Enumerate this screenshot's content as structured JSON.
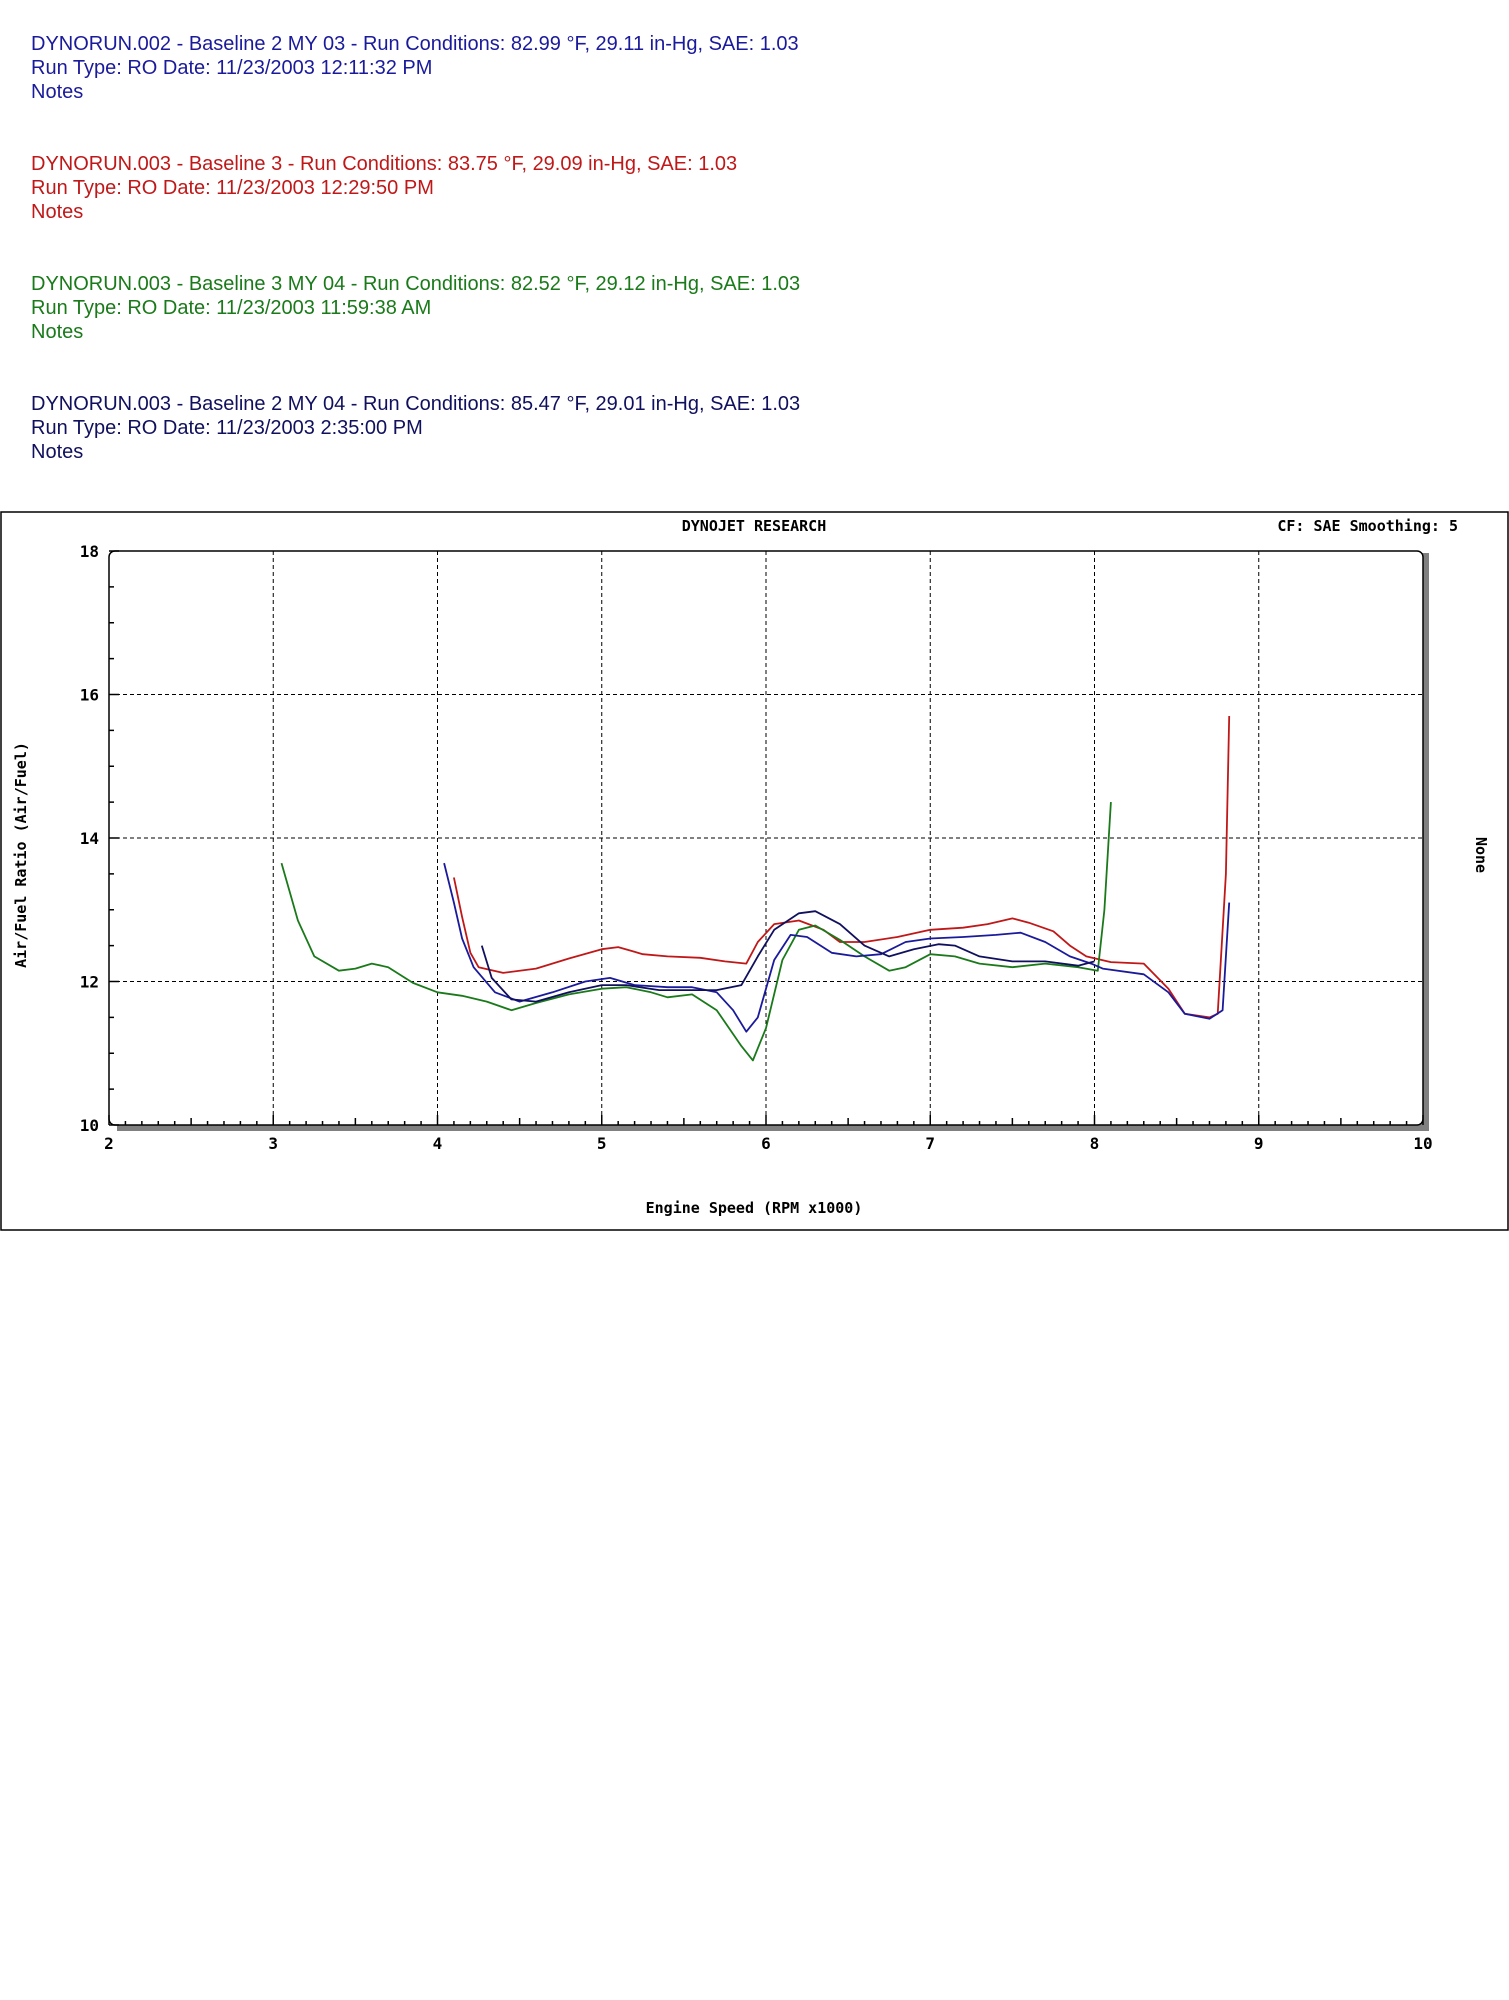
{
  "runs": [
    {
      "line1": "DYNORUN.002 - Baseline 2 MY 03  -  Run Conditions: 82.99 °F, 29.11 in-Hg, SAE: 1.03",
      "line2": "Run Type: RO  Date: 11/23/2003 12:11:32 PM",
      "line3": "Notes",
      "color": "#1a1a9c"
    },
    {
      "line1": "DYNORUN.003 - Baseline 3  -  Run Conditions: 83.75 °F, 29.09 in-Hg, SAE: 1.03",
      "line2": "Run Type: RO  Date: 11/23/2003 12:29:50 PM",
      "line3": "Notes",
      "color": "#c01818"
    },
    {
      "line1": "DYNORUN.003 - Baseline 3 MY 04  -  Run Conditions: 82.52 °F, 29.12 in-Hg, SAE: 1.03",
      "line2": "Run Type: RO  Date: 11/23/2003 11:59:38 AM",
      "line3": "Notes",
      "color": "#1a7a1a"
    },
    {
      "line1": "DYNORUN.003 - Baseline 2 MY 04  -  Run Conditions: 85.47 °F, 29.01 in-Hg, SAE: 1.03",
      "line2": "Run Type: RO  Date: 11/23/2003 2:35:00 PM",
      "line3": "Notes",
      "color": "#10105e"
    }
  ],
  "chart_data": {
    "type": "line",
    "title": "DYNOJET RESEARCH",
    "corner_label": "CF: SAE  Smoothing: 5",
    "right_axis_label": "None",
    "xlabel": "Engine Speed (RPM x1000)",
    "ylabel": "Air/Fuel Ratio (Air/Fuel)",
    "xlim": [
      2,
      10
    ],
    "ylim": [
      10,
      18
    ],
    "xticks": [
      "2",
      "3",
      "4",
      "5",
      "6",
      "7",
      "8",
      "9",
      "10"
    ],
    "yticks": [
      "10",
      "12",
      "14",
      "16",
      "18"
    ],
    "grid": true,
    "series": [
      {
        "color": "#c01818",
        "points": [
          [
            4.1,
            13.45
          ],
          [
            4.15,
            12.9
          ],
          [
            4.2,
            12.4
          ],
          [
            4.25,
            12.2
          ],
          [
            4.4,
            12.12
          ],
          [
            4.6,
            12.18
          ],
          [
            4.8,
            12.32
          ],
          [
            5.0,
            12.45
          ],
          [
            5.1,
            12.48
          ],
          [
            5.25,
            12.38
          ],
          [
            5.4,
            12.35
          ],
          [
            5.6,
            12.33
          ],
          [
            5.75,
            12.28
          ],
          [
            5.88,
            12.25
          ],
          [
            5.95,
            12.55
          ],
          [
            6.05,
            12.8
          ],
          [
            6.2,
            12.85
          ],
          [
            6.35,
            12.72
          ],
          [
            6.45,
            12.55
          ],
          [
            6.6,
            12.55
          ],
          [
            6.8,
            12.62
          ],
          [
            7.0,
            12.72
          ],
          [
            7.2,
            12.75
          ],
          [
            7.35,
            12.8
          ],
          [
            7.5,
            12.88
          ],
          [
            7.6,
            12.82
          ],
          [
            7.75,
            12.7
          ],
          [
            7.85,
            12.5
          ],
          [
            7.95,
            12.35
          ],
          [
            8.1,
            12.27
          ],
          [
            8.3,
            12.25
          ],
          [
            8.45,
            11.9
          ],
          [
            8.55,
            11.55
          ],
          [
            8.7,
            11.5
          ],
          [
            8.75,
            11.55
          ],
          [
            8.8,
            13.5
          ],
          [
            8.82,
            15.7
          ]
        ]
      },
      {
        "color": "#1a7a1a",
        "points": [
          [
            3.05,
            13.65
          ],
          [
            3.15,
            12.85
          ],
          [
            3.25,
            12.35
          ],
          [
            3.4,
            12.15
          ],
          [
            3.5,
            12.18
          ],
          [
            3.6,
            12.25
          ],
          [
            3.7,
            12.2
          ],
          [
            3.85,
            11.98
          ],
          [
            4.0,
            11.85
          ],
          [
            4.15,
            11.8
          ],
          [
            4.3,
            11.72
          ],
          [
            4.45,
            11.6
          ],
          [
            4.6,
            11.7
          ],
          [
            4.8,
            11.82
          ],
          [
            5.0,
            11.9
          ],
          [
            5.15,
            11.92
          ],
          [
            5.3,
            11.85
          ],
          [
            5.4,
            11.78
          ],
          [
            5.55,
            11.82
          ],
          [
            5.7,
            11.6
          ],
          [
            5.85,
            11.1
          ],
          [
            5.92,
            10.9
          ],
          [
            6.0,
            11.35
          ],
          [
            6.1,
            12.3
          ],
          [
            6.2,
            12.72
          ],
          [
            6.3,
            12.78
          ],
          [
            6.45,
            12.58
          ],
          [
            6.6,
            12.35
          ],
          [
            6.75,
            12.15
          ],
          [
            6.85,
            12.2
          ],
          [
            7.0,
            12.38
          ],
          [
            7.15,
            12.35
          ],
          [
            7.3,
            12.25
          ],
          [
            7.5,
            12.2
          ],
          [
            7.7,
            12.25
          ],
          [
            7.9,
            12.2
          ],
          [
            8.02,
            12.15
          ],
          [
            8.06,
            13.0
          ],
          [
            8.1,
            14.5
          ]
        ]
      },
      {
        "color": "#1a1a9c",
        "points": [
          [
            4.04,
            13.65
          ],
          [
            4.1,
            13.1
          ],
          [
            4.15,
            12.6
          ],
          [
            4.22,
            12.2
          ],
          [
            4.35,
            11.85
          ],
          [
            4.5,
            11.72
          ],
          [
            4.7,
            11.85
          ],
          [
            4.9,
            12.0
          ],
          [
            5.05,
            12.05
          ],
          [
            5.2,
            11.95
          ],
          [
            5.4,
            11.92
          ],
          [
            5.55,
            11.92
          ],
          [
            5.7,
            11.85
          ],
          [
            5.8,
            11.6
          ],
          [
            5.88,
            11.3
          ],
          [
            5.95,
            11.5
          ],
          [
            6.05,
            12.3
          ],
          [
            6.15,
            12.65
          ],
          [
            6.25,
            12.62
          ],
          [
            6.4,
            12.4
          ],
          [
            6.55,
            12.35
          ],
          [
            6.7,
            12.38
          ],
          [
            6.85,
            12.55
          ],
          [
            7.0,
            12.6
          ],
          [
            7.2,
            12.62
          ],
          [
            7.4,
            12.65
          ],
          [
            7.55,
            12.68
          ],
          [
            7.7,
            12.55
          ],
          [
            7.85,
            12.35
          ],
          [
            7.98,
            12.25
          ],
          [
            8.05,
            12.18
          ],
          [
            8.3,
            12.1
          ],
          [
            8.45,
            11.85
          ],
          [
            8.55,
            11.55
          ],
          [
            8.7,
            11.48
          ],
          [
            8.78,
            11.6
          ],
          [
            8.82,
            13.1
          ]
        ]
      },
      {
        "color": "#10105e",
        "points": [
          [
            4.27,
            12.5
          ],
          [
            4.33,
            12.05
          ],
          [
            4.45,
            11.75
          ],
          [
            4.6,
            11.72
          ],
          [
            4.8,
            11.85
          ],
          [
            5.0,
            11.95
          ],
          [
            5.15,
            11.95
          ],
          [
            5.35,
            11.88
          ],
          [
            5.55,
            11.88
          ],
          [
            5.7,
            11.88
          ],
          [
            5.85,
            11.95
          ],
          [
            5.95,
            12.35
          ],
          [
            6.05,
            12.72
          ],
          [
            6.2,
            12.95
          ],
          [
            6.3,
            12.98
          ],
          [
            6.45,
            12.8
          ],
          [
            6.6,
            12.5
          ],
          [
            6.75,
            12.35
          ],
          [
            6.9,
            12.45
          ],
          [
            7.05,
            12.52
          ],
          [
            7.15,
            12.5
          ],
          [
            7.3,
            12.35
          ],
          [
            7.5,
            12.28
          ],
          [
            7.7,
            12.28
          ],
          [
            7.9,
            12.22
          ],
          [
            8.0,
            12.28
          ]
        ]
      }
    ]
  }
}
